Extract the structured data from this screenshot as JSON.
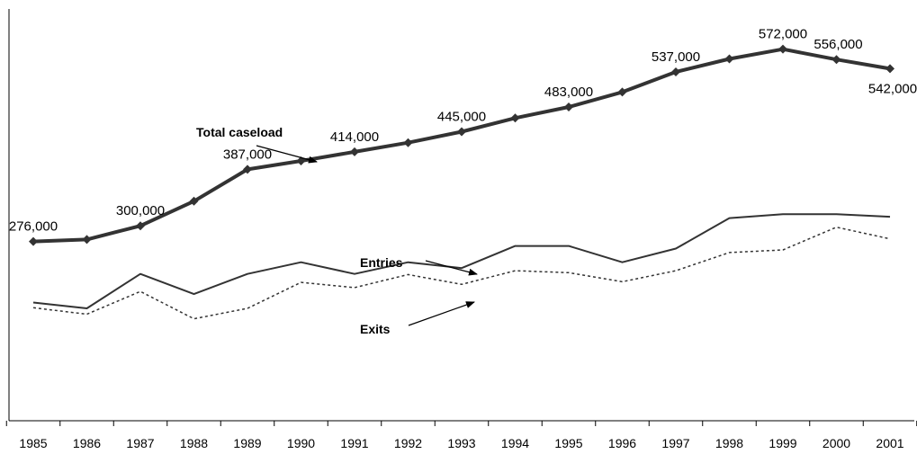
{
  "chart_data": {
    "type": "line",
    "title": "",
    "xlabel": "",
    "ylabel": "",
    "x": [
      "1985",
      "1986",
      "1987",
      "1988",
      "1989",
      "1990",
      "1991",
      "1992",
      "1993",
      "1994",
      "1995",
      "1996",
      "1997",
      "1998",
      "1999",
      "2000",
      "2001"
    ],
    "ylim": [
      0,
      620000
    ],
    "grid": false,
    "series": [
      {
        "name": "Total caseload",
        "values": [
          276000,
          279000,
          300000,
          338000,
          387000,
          400000,
          414000,
          428000,
          445000,
          466000,
          483000,
          506000,
          537000,
          557000,
          572000,
          556000,
          542000
        ],
        "color": "#333333",
        "style": "solid-bold-markers"
      },
      {
        "name": "Entries",
        "values": [
          182000,
          173000,
          226000,
          195000,
          226000,
          244000,
          226000,
          244000,
          235000,
          269000,
          269000,
          244000,
          265000,
          312000,
          318000,
          318000,
          314000
        ],
        "color": "#333333",
        "style": "solid"
      },
      {
        "name": "Exits",
        "values": [
          174000,
          164000,
          199000,
          157000,
          173000,
          213000,
          205000,
          225000,
          210000,
          231000,
          228000,
          214000,
          231000,
          259000,
          263000,
          298000,
          280000
        ],
        "color": "#333333",
        "style": "dotted"
      }
    ],
    "data_labels": [
      {
        "index": 0,
        "text": "276,000"
      },
      {
        "index": 2,
        "text": "300,000"
      },
      {
        "index": 4,
        "text": "387,000"
      },
      {
        "index": 6,
        "text": "414,000"
      },
      {
        "index": 8,
        "text": "445,000"
      },
      {
        "index": 10,
        "text": "483,000"
      },
      {
        "index": 12,
        "text": "537,000"
      },
      {
        "index": 14,
        "text": "572,000"
      },
      {
        "index": 15,
        "text": "556,000"
      },
      {
        "index": 16,
        "text": "542,000"
      }
    ],
    "annotations": [
      {
        "name": "total-caseload-annotation",
        "text": "Total caseload",
        "series": 0
      },
      {
        "name": "entries-annotation",
        "text": "Entries",
        "series": 1
      },
      {
        "name": "exits-annotation",
        "text": "Exits",
        "series": 2
      }
    ]
  }
}
